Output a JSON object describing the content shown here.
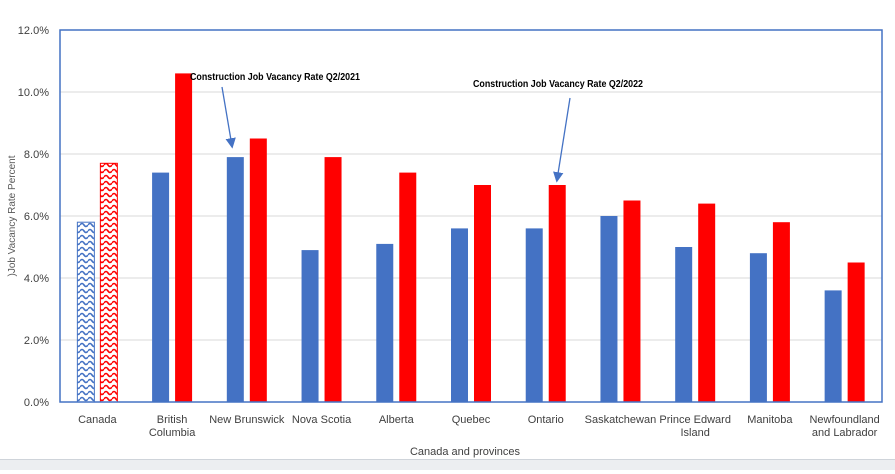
{
  "chart_data": {
    "type": "bar",
    "title": "",
    "xlabel": "Canada and provinces",
    "ylabel": ")Job Vacancy Rate Percent",
    "ylim": [
      0,
      12
    ],
    "yticks": [
      "0.0%",
      "2.0%",
      "4.0%",
      "6.0%",
      "8.0%",
      "10.0%",
      "12.0%"
    ],
    "ytick_values": [
      0,
      2,
      4,
      6,
      8,
      10,
      12
    ],
    "grid": true,
    "categories": [
      [
        "Canada"
      ],
      [
        "British",
        "Columbia"
      ],
      [
        "New Brunswick"
      ],
      [
        "Nova Scotia"
      ],
      [
        "Alberta"
      ],
      [
        "Quebec"
      ],
      [
        "Ontario"
      ],
      [
        "Saskatchewan"
      ],
      [
        "Prince Edward",
        "Island"
      ],
      [
        "Manitoba"
      ],
      [
        "Newfoundland",
        "and Labrador"
      ]
    ],
    "series": [
      {
        "name": "Construction Job Vacancy Rate Q2/2021",
        "color": "#4472c4",
        "values": [
          5.8,
          7.4,
          7.9,
          4.9,
          5.1,
          5.6,
          5.6,
          6.0,
          5.0,
          4.8,
          3.6
        ]
      },
      {
        "name": "Construction Job Vacancy Rate Q2/2022",
        "color": "#ff0000",
        "values": [
          7.7,
          10.6,
          8.5,
          7.9,
          7.4,
          7.0,
          7.0,
          6.5,
          6.4,
          5.8,
          4.5
        ]
      }
    ],
    "patterned_categories": [
      "Canada"
    ],
    "annotations": [
      {
        "text": "Construction Job Vacancy Rate Q2/2021",
        "points_to_series": 0,
        "points_to_category": "New Brunswick"
      },
      {
        "text": "Construction Job Vacancy Rate Q2/2022",
        "points_to_series": 1,
        "points_to_category": "Ontario"
      }
    ],
    "colors": {
      "axis": "#4472c4",
      "grid": "#d9d9d9",
      "text": "#404040"
    }
  }
}
